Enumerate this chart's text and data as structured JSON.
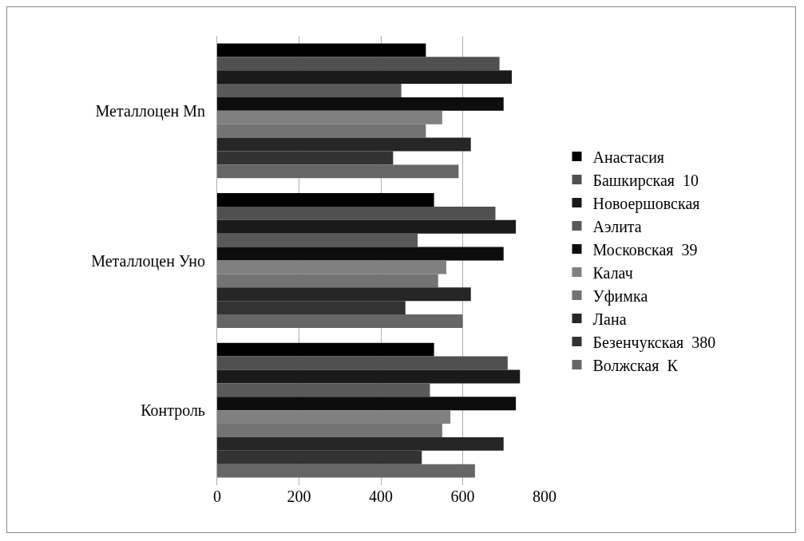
{
  "chart_data": {
    "type": "bar",
    "orientation": "horizontal",
    "categories": [
      "Металлоцен Mn",
      "Металлоцен Уно",
      "Контроль"
    ],
    "series": [
      {
        "name": "Анастасия",
        "color": "#000000",
        "values": [
          510,
          530,
          530
        ]
      },
      {
        "name": "Башкирская  10",
        "color": "#505050",
        "values": [
          690,
          680,
          710
        ]
      },
      {
        "name": "Новоершовская",
        "color": "#1a1a1a",
        "values": [
          720,
          730,
          740
        ]
      },
      {
        "name": "Аэлита",
        "color": "#595959",
        "values": [
          450,
          490,
          520
        ]
      },
      {
        "name": "Московская  39",
        "color": "#0d0d0d",
        "values": [
          700,
          700,
          730
        ]
      },
      {
        "name": "Калач",
        "color": "#808080",
        "values": [
          550,
          560,
          570
        ]
      },
      {
        "name": "Уфимка",
        "color": "#737373",
        "values": [
          510,
          540,
          550
        ]
      },
      {
        "name": "Лана",
        "color": "#262626",
        "values": [
          620,
          620,
          700
        ]
      },
      {
        "name": "Безенчукская  380",
        "color": "#333333",
        "values": [
          430,
          460,
          500
        ]
      },
      {
        "name": "Волжская  К",
        "color": "#666666",
        "values": [
          590,
          600,
          630
        ]
      }
    ],
    "xlim": [
      0,
      800
    ],
    "xticks": [
      0,
      200,
      400,
      600,
      800
    ],
    "grid": "x",
    "legend": "right"
  }
}
